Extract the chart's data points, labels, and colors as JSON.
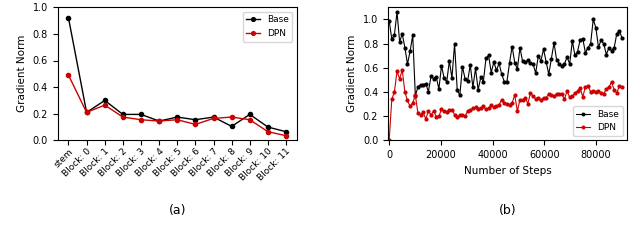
{
  "plot_a": {
    "categories": [
      "stem",
      "Block: 0",
      "Block: 1",
      "Block: 2",
      "Block: 3",
      "Block: 4",
      "Block: 5",
      "Block: 6",
      "Block: 7",
      "Block: 8",
      "Block: 9",
      "Block: 10",
      "Block: 11"
    ],
    "base_values": [
      0.92,
      0.21,
      0.3,
      0.195,
      0.195,
      0.145,
      0.175,
      0.155,
      0.175,
      0.105,
      0.195,
      0.1,
      0.065
    ],
    "dpn_values": [
      0.49,
      0.21,
      0.265,
      0.175,
      0.155,
      0.145,
      0.155,
      0.12,
      0.165,
      0.175,
      0.155,
      0.065,
      0.035
    ],
    "ylabel": "Gradient Norm",
    "caption": "(a)",
    "ylim": [
      0.0,
      1.0
    ]
  },
  "plot_b": {
    "ylabel": "Gradient Norm",
    "xlabel": "Number of Steps",
    "caption": "(b)",
    "ylim": [
      0.0,
      1.1
    ],
    "xlim": [
      -500,
      92000
    ]
  },
  "legend_base": "Base",
  "legend_dpn": "DPN",
  "base_color": "#000000",
  "dpn_color": "#cc0000"
}
